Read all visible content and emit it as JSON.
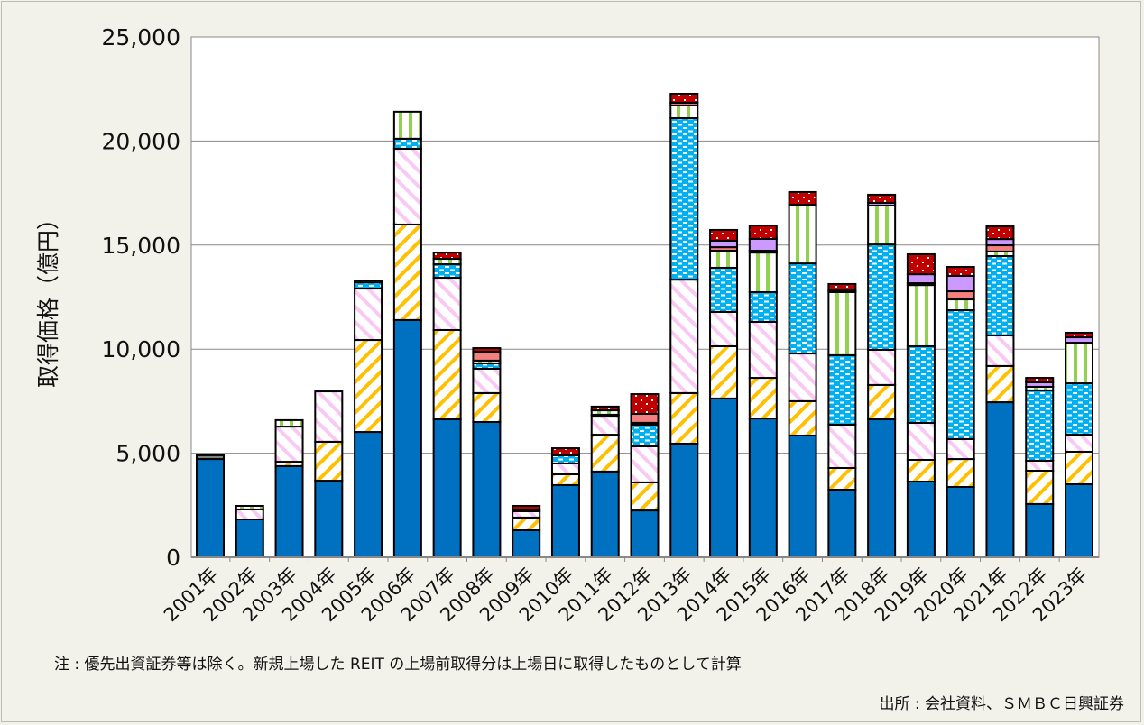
{
  "chart_data": {
    "type": "bar",
    "stacked": true,
    "ylabel": "取得価格（億円）",
    "xlabel": "",
    "ylim": [
      0,
      25000
    ],
    "yticks": [
      "0",
      "5,000",
      "10,000",
      "15,000",
      "20,000",
      "25,000"
    ],
    "ytick_values": [
      0,
      5000,
      10000,
      15000,
      20000,
      25000
    ],
    "grid": true,
    "legend": "none",
    "categories": [
      "2001年",
      "2002年",
      "2003年",
      "2004年",
      "2005年",
      "2006年",
      "2007年",
      "2008年",
      "2009年",
      "2010年",
      "2011年",
      "2012年",
      "2013年",
      "2014年",
      "2015年",
      "2016年",
      "2017年",
      "2018年",
      "2019年",
      "2020年",
      "2021年",
      "2022年",
      "2023年"
    ],
    "series": [
      {
        "color": "#0070c0",
        "pattern": "solid",
        "values": [
          4720,
          1820,
          4380,
          3680,
          6020,
          11400,
          6630,
          6500,
          1300,
          3470,
          4120,
          2250,
          5460,
          7630,
          6670,
          5850,
          3250,
          6630,
          3640,
          3380,
          7450,
          2560,
          3510
        ]
      },
      {
        "color": "#ffc000",
        "pattern": "diagonal-hatch",
        "values": [
          0,
          0,
          210,
          1870,
          4420,
          4590,
          4290,
          1390,
          610,
          520,
          1770,
          1350,
          2430,
          2510,
          1950,
          1650,
          1040,
          1650,
          1040,
          1340,
          1740,
          1600,
          1560
        ]
      },
      {
        "color": "#f9c8f4",
        "pattern": "diagonal-hatch-reverse",
        "values": [
          0,
          480,
          1690,
          2420,
          2470,
          3640,
          2510,
          1170,
          300,
          520,
          910,
          1730,
          5450,
          1650,
          2690,
          2290,
          2080,
          1690,
          1780,
          960,
          1470,
          480,
          820
        ]
      },
      {
        "color": "#00b0f0",
        "pattern": "dash-dots",
        "values": [
          0,
          0,
          0,
          0,
          300,
          480,
          650,
          260,
          90,
          390,
          50,
          1040,
          7760,
          2120,
          1430,
          4330,
          3340,
          5060,
          3680,
          6190,
          3810,
          3380,
          2470
        ]
      },
      {
        "color": "#92d050",
        "pattern": "vertical-stripes",
        "values": [
          0,
          170,
          310,
          0,
          90,
          1300,
          260,
          130,
          0,
          0,
          210,
          90,
          610,
          820,
          1900,
          2820,
          3030,
          1870,
          2940,
          520,
          220,
          170,
          1950
        ]
      },
      {
        "color": "#f28080",
        "pattern": "solid",
        "values": [
          0,
          0,
          0,
          0,
          0,
          0,
          0,
          430,
          0,
          0,
          0,
          430,
          130,
          170,
          90,
          0,
          0,
          0,
          90,
          390,
          300,
          0,
          0
        ]
      },
      {
        "color": "#cc99ff",
        "pattern": "solid",
        "values": [
          0,
          0,
          0,
          0,
          0,
          0,
          0,
          0,
          0,
          0,
          0,
          0,
          0,
          310,
          570,
          0,
          90,
          130,
          430,
          740,
          300,
          220,
          260
        ]
      },
      {
        "color": "#c00000",
        "pattern": "white-dots",
        "values": [
          0,
          0,
          0,
          0,
          0,
          0,
          300,
          170,
          170,
          340,
          180,
          950,
          430,
          520,
          640,
          610,
          300,
          390,
          960,
          430,
          610,
          210,
          220
        ]
      },
      {
        "color": "#808080",
        "pattern": "solid",
        "values": [
          180,
          0,
          0,
          0,
          0,
          0,
          0,
          0,
          0,
          0,
          0,
          0,
          0,
          0,
          0,
          0,
          0,
          0,
          0,
          0,
          0,
          0,
          0
        ]
      }
    ]
  },
  "notes": {
    "note": "注 : 優先出資証券等は除く。新規上場した REIT の上場前取得分は上場日に取得したものとして計算",
    "source": "出所 : 会社資料、ＳＭＢＣ日興証券"
  }
}
